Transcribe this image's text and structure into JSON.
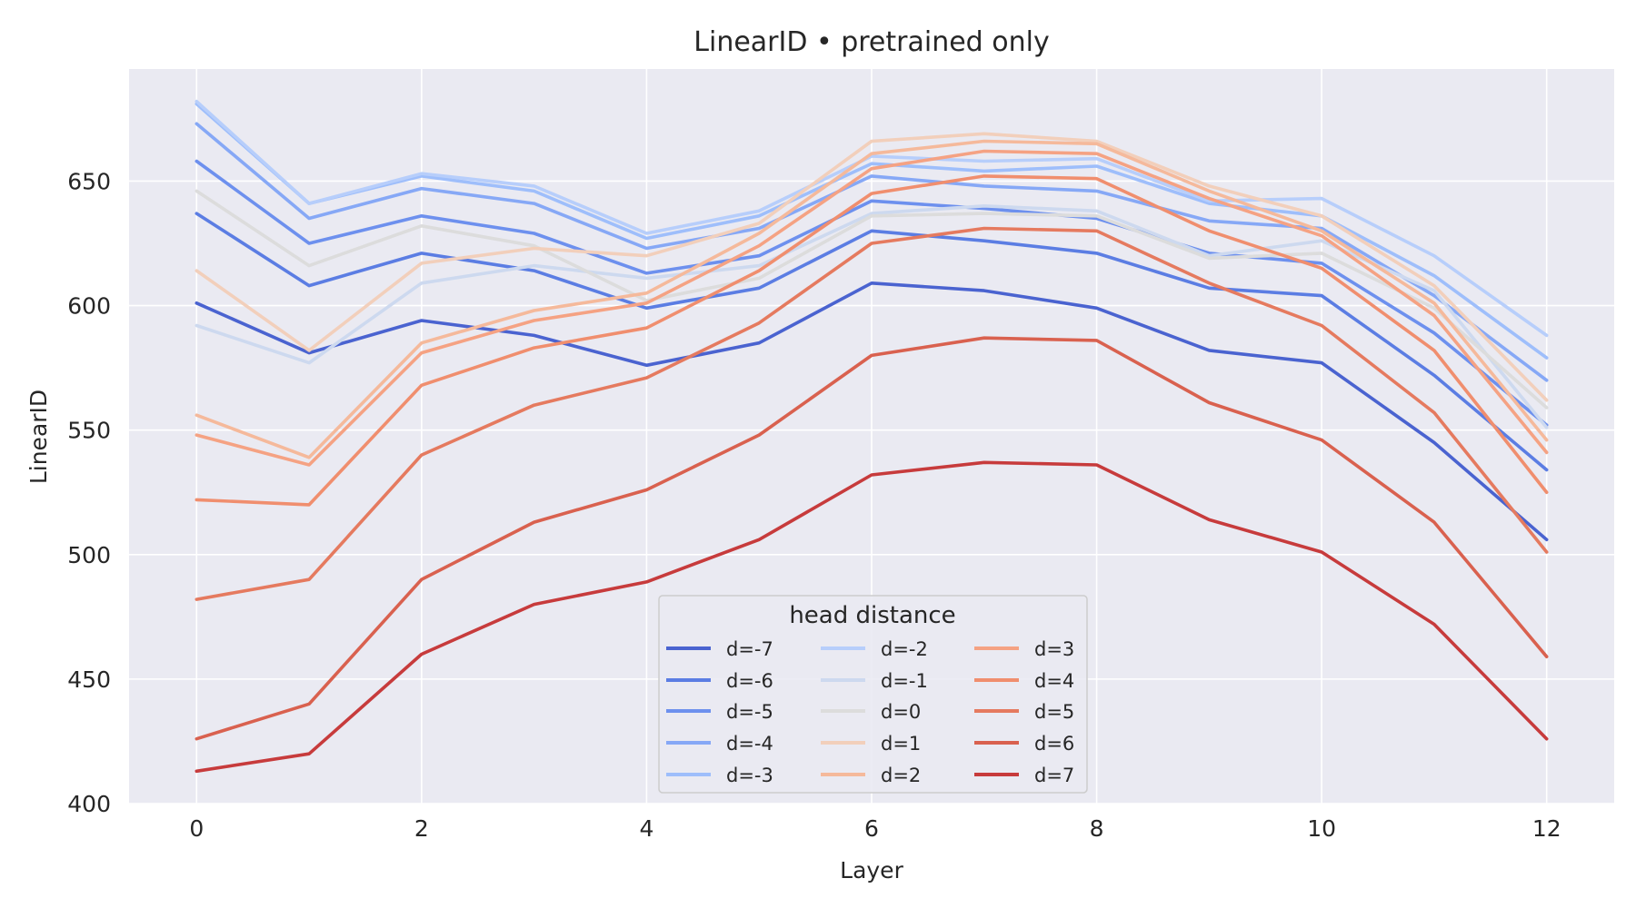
{
  "chart_data": {
    "type": "line",
    "title": "LinearID • pretrained only",
    "xlabel": "Layer",
    "ylabel": "LinearID",
    "xlim": [
      -0.6,
      12.6
    ],
    "ylim": [
      400,
      695
    ],
    "xticks": [
      0,
      2,
      4,
      6,
      8,
      10,
      12
    ],
    "yticks": [
      400,
      450,
      500,
      550,
      600,
      650
    ],
    "grid": true,
    "legend_title": "head distance",
    "legend_position": "bottom-center",
    "x": [
      0,
      1,
      2,
      3,
      4,
      5,
      6,
      7,
      8,
      9,
      10,
      11,
      12
    ],
    "series": [
      {
        "name": "d=-7",
        "color": "#4a63d0",
        "values": [
          601,
          581,
          594,
          588,
          576,
          585,
          609,
          606,
          599,
          582,
          577,
          545,
          506
        ]
      },
      {
        "name": "d=-6",
        "color": "#5b7de3",
        "values": [
          637,
          608,
          621,
          614,
          599,
          607,
          630,
          626,
          621,
          607,
          604,
          572,
          534
        ]
      },
      {
        "name": "d=-5",
        "color": "#6d90ee",
        "values": [
          658,
          625,
          636,
          629,
          613,
          620,
          642,
          639,
          635,
          621,
          617,
          589,
          552
        ]
      },
      {
        "name": "d=-4",
        "color": "#86a8f6",
        "values": [
          673,
          635,
          647,
          641,
          623,
          631,
          652,
          648,
          646,
          634,
          631,
          604,
          570
        ]
      },
      {
        "name": "d=-3",
        "color": "#9ebefb",
        "values": [
          681,
          641,
          652,
          646,
          627,
          636,
          657,
          654,
          656,
          641,
          636,
          612,
          579
        ]
      },
      {
        "name": "d=-2",
        "color": "#b7cefb",
        "values": [
          682,
          641,
          653,
          648,
          629,
          638,
          660,
          658,
          659,
          642,
          643,
          620,
          588
        ]
      },
      {
        "name": "d=-1",
        "color": "#cdd9ef",
        "values": [
          592,
          577,
          609,
          616,
          611,
          616,
          637,
          640,
          638,
          620,
          626,
          606,
          551
        ]
      },
      {
        "name": "d=0",
        "color": "#dcdcdc",
        "values": [
          646,
          616,
          632,
          624,
          602,
          611,
          636,
          637,
          636,
          619,
          621,
          599,
          559
        ]
      },
      {
        "name": "d=1",
        "color": "#f2cfbb",
        "values": [
          614,
          582,
          617,
          623,
          620,
          633,
          666,
          669,
          666,
          648,
          636,
          608,
          562
        ]
      },
      {
        "name": "d=2",
        "color": "#f5b99b",
        "values": [
          556,
          539,
          585,
          598,
          605,
          629,
          661,
          666,
          665,
          646,
          630,
          601,
          546
        ]
      },
      {
        "name": "d=3",
        "color": "#f5a283",
        "values": [
          548,
          536,
          581,
          594,
          601,
          624,
          655,
          662,
          661,
          643,
          628,
          596,
          541
        ]
      },
      {
        "name": "d=4",
        "color": "#f08e6e",
        "values": [
          522,
          520,
          568,
          583,
          591,
          614,
          645,
          652,
          651,
          630,
          615,
          582,
          525
        ]
      },
      {
        "name": "d=5",
        "color": "#e57a5f",
        "values": [
          482,
          490,
          540,
          560,
          571,
          593,
          625,
          631,
          630,
          609,
          592,
          557,
          501
        ]
      },
      {
        "name": "d=6",
        "color": "#d9614f",
        "values": [
          426,
          440,
          490,
          513,
          526,
          548,
          580,
          587,
          586,
          561,
          546,
          513,
          459
        ]
      },
      {
        "name": "d=7",
        "color": "#c73b3c",
        "values": [
          413,
          420,
          460,
          480,
          489,
          506,
          532,
          537,
          536,
          514,
          501,
          472,
          426
        ]
      }
    ]
  }
}
